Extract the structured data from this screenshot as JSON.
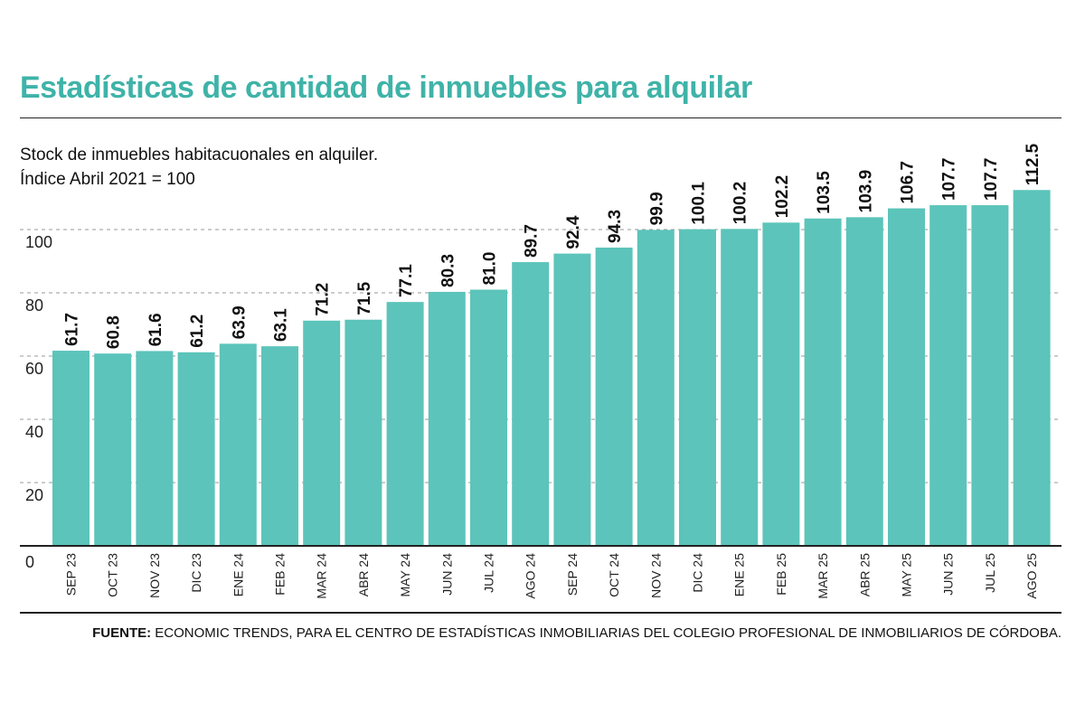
{
  "header": {
    "title": "Estadísticas de cantidad de inmuebles para alquilar",
    "subtitle_line1": "Stock de inmuebles habitacuonales en alquiler.",
    "subtitle_line2": "Índice Abril 2021 = 100"
  },
  "footer": {
    "source_label": "FUENTE:",
    "source_text": "ECONOMIC TRENDS, PARA EL CENTRO DE ESTADÍSTICAS INMOBILIARIAS DEL COLEGIO PROFESIONAL DE INMOBILIARIOS DE CÓRDOBA."
  },
  "colors": {
    "bar": "#5cc4ba",
    "title": "#3fb3a8",
    "grid": "#999999"
  },
  "chart_data": {
    "type": "bar",
    "title": "Estadísticas de cantidad de inmuebles para alquilar",
    "categories": [
      "SEP 23",
      "OCT 23",
      "NOV 23",
      "DIC 23",
      "ENE 24",
      "FEB 24",
      "MAR 24",
      "ABR 24",
      "MAY 24",
      "JUN 24",
      "JUL 24",
      "AGO 24",
      "SEP 24",
      "OCT 24",
      "NOV 24",
      "DIC 24",
      "ENE 25",
      "FEB 25",
      "MAR 25",
      "ABR 25",
      "MAY 25",
      "JUN 25",
      "JUL 25",
      "AGO 25"
    ],
    "values": [
      61.7,
      60.8,
      61.6,
      61.2,
      63.9,
      63.1,
      71.2,
      71.5,
      77.1,
      80.3,
      81.0,
      89.7,
      92.4,
      94.3,
      99.9,
      100.1,
      100.2,
      102.2,
      103.5,
      103.9,
      106.7,
      107.7,
      107.7,
      112.5
    ],
    "labels": [
      "61.7",
      "60.8",
      "61.6",
      "61.2",
      "63.9",
      "63.1",
      "71.2",
      "71.5",
      "77.1",
      "80.3",
      "81.0",
      "89.7",
      "92.4",
      "94.3",
      "99.9",
      "100.1",
      "100.2",
      "102.2",
      "103.5",
      "103.9",
      "106.7",
      "107.7",
      "107.7",
      "112.5"
    ],
    "yticks": [
      0,
      20,
      40,
      60,
      80,
      100
    ],
    "ylim": [
      0,
      115
    ],
    "grid": "horizontal dashed",
    "legend": "none"
  }
}
